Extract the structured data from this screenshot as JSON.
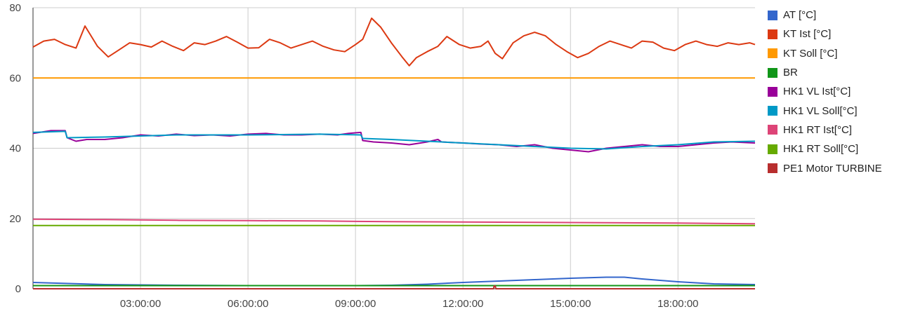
{
  "chart_data": {
    "type": "line",
    "title": "",
    "xlabel": "",
    "ylabel": "",
    "xlim": [
      0,
      20.15
    ],
    "ylim": [
      0,
      80
    ],
    "yticks": [
      0,
      20,
      40,
      60,
      80
    ],
    "xticks": [
      {
        "x": 3,
        "label": "03:00:00"
      },
      {
        "x": 6,
        "label": "06:00:00"
      },
      {
        "x": 9,
        "label": "09:00:00"
      },
      {
        "x": 12,
        "label": "12:00:00"
      },
      {
        "x": 15,
        "label": "15:00:00"
      },
      {
        "x": 18,
        "label": "18:00:00"
      }
    ],
    "grid": true,
    "legend_position": "right",
    "series": [
      {
        "name": "AT [°C]",
        "color": "#3366cc",
        "x": [
          0,
          2,
          4,
          6,
          8,
          9,
          10,
          11,
          12,
          13,
          14,
          15,
          16,
          16.5,
          17,
          18,
          19,
          20.15
        ],
        "y": [
          1.8,
          1.2,
          1.0,
          0.9,
          0.9,
          0.9,
          1.0,
          1.3,
          1.8,
          2.2,
          2.6,
          3.0,
          3.3,
          3.3,
          2.8,
          2.0,
          1.4,
          1.2
        ]
      },
      {
        "name": "KT Ist [°C]",
        "color": "#dc3912",
        "x": [
          0,
          0.3,
          0.6,
          0.9,
          1.2,
          1.45,
          1.8,
          2.1,
          2.4,
          2.7,
          3.0,
          3.3,
          3.6,
          3.9,
          4.2,
          4.5,
          4.8,
          5.1,
          5.4,
          5.7,
          6.0,
          6.3,
          6.6,
          6.9,
          7.2,
          7.5,
          7.8,
          8.1,
          8.4,
          8.7,
          9.0,
          9.2,
          9.45,
          9.7,
          10.0,
          10.3,
          10.5,
          10.7,
          11.0,
          11.3,
          11.55,
          11.9,
          12.2,
          12.5,
          12.7,
          12.9,
          13.1,
          13.4,
          13.7,
          14.0,
          14.3,
          14.6,
          14.9,
          15.2,
          15.5,
          15.8,
          16.1,
          16.4,
          16.7,
          17.0,
          17.3,
          17.6,
          17.9,
          18.2,
          18.5,
          18.8,
          19.1,
          19.4,
          19.7,
          20.0,
          20.15
        ],
        "y": [
          68.8,
          70.5,
          71,
          69.5,
          68.5,
          74.8,
          69.0,
          66.0,
          68.0,
          70.0,
          69.5,
          68.8,
          70.5,
          69.0,
          67.8,
          70.0,
          69.5,
          70.5,
          71.8,
          70.2,
          68.5,
          68.6,
          71.0,
          70.0,
          68.5,
          69.5,
          70.5,
          69.0,
          68.0,
          67.5,
          69.5,
          71.0,
          77.0,
          74.5,
          70.0,
          66.0,
          63.5,
          65.8,
          67.5,
          69.0,
          71.8,
          69.5,
          68.5,
          69.0,
          70.5,
          67.0,
          65.5,
          70.0,
          72.0,
          73.0,
          72.0,
          69.5,
          67.5,
          65.8,
          67.0,
          69.0,
          70.5,
          69.5,
          68.5,
          70.5,
          70.2,
          68.5,
          67.8,
          69.5,
          70.5,
          69.5,
          69.0,
          70.0,
          69.5,
          70.0,
          69.5
        ]
      },
      {
        "name": "KT Soll [°C]",
        "color": "#ff9900",
        "x": [
          0,
          20.15
        ],
        "y": [
          60,
          60
        ]
      },
      {
        "name": "BR",
        "color": "#109618",
        "x": [
          0,
          20.15
        ],
        "y": [
          0.9,
          0.9
        ]
      },
      {
        "name": "HK1 VL Ist[°C]",
        "color": "#990099",
        "x": [
          0,
          0.5,
          0.9,
          0.95,
          1.2,
          1.5,
          2.0,
          2.5,
          3.0,
          3.5,
          4.0,
          4.5,
          5.0,
          5.5,
          6.0,
          6.5,
          7.0,
          7.5,
          8.0,
          8.5,
          8.8,
          9.15,
          9.2,
          9.5,
          10.0,
          10.5,
          11.0,
          11.3,
          11.4,
          12.0,
          12.5,
          13.0,
          13.5,
          14.0,
          14.5,
          15.0,
          15.5,
          16.0,
          16.5,
          17.0,
          17.5,
          18.0,
          18.5,
          19.0,
          19.5,
          20.15
        ],
        "y": [
          44.2,
          45.0,
          45.0,
          43.0,
          42.0,
          42.5,
          42.5,
          43.0,
          43.8,
          43.5,
          44.0,
          43.6,
          43.8,
          43.5,
          44.0,
          44.2,
          43.8,
          43.8,
          44.0,
          43.8,
          44.2,
          44.5,
          42.2,
          41.8,
          41.5,
          41.0,
          41.8,
          42.5,
          41.8,
          41.5,
          41.2,
          41.0,
          40.5,
          41.0,
          40.0,
          39.5,
          39.0,
          40.0,
          40.5,
          41.0,
          40.5,
          40.5,
          41.0,
          41.5,
          41.8,
          41.5
        ]
      },
      {
        "name": "HK1 VL Soll[°C]",
        "color": "#0099c6",
        "x": [
          0,
          0.9,
          0.95,
          2.0,
          4.0,
          6.0,
          8.0,
          9.15,
          9.2,
          10.0,
          11.0,
          12.0,
          13.0,
          14.0,
          15.0,
          16.0,
          17.0,
          18.0,
          19.0,
          20.15
        ],
        "y": [
          44.5,
          44.8,
          43.0,
          43.2,
          43.8,
          43.8,
          44.0,
          43.8,
          42.8,
          42.5,
          42.0,
          41.5,
          41.0,
          40.5,
          40.0,
          39.8,
          40.5,
          41.0,
          41.8,
          42.0
        ]
      },
      {
        "name": "HK1 RT Ist[°C]",
        "color": "#dd4477",
        "x": [
          0,
          2,
          4,
          6,
          8,
          10,
          12,
          14,
          16,
          18,
          20.15
        ],
        "y": [
          19.8,
          19.7,
          19.5,
          19.4,
          19.3,
          19.1,
          19.0,
          18.9,
          18.8,
          18.7,
          18.5
        ]
      },
      {
        "name": "HK1 RT Soll[°C]",
        "color": "#66aa00",
        "x": [
          0,
          20.15
        ],
        "y": [
          18,
          18
        ]
      },
      {
        "name": "PE1 Motor TURBINE",
        "color": "#b82e2e",
        "x": [
          0,
          12.85,
          12.87,
          12.9,
          12.92,
          20.15
        ],
        "y": [
          0,
          0,
          0.8,
          0.8,
          0,
          0
        ]
      }
    ]
  }
}
